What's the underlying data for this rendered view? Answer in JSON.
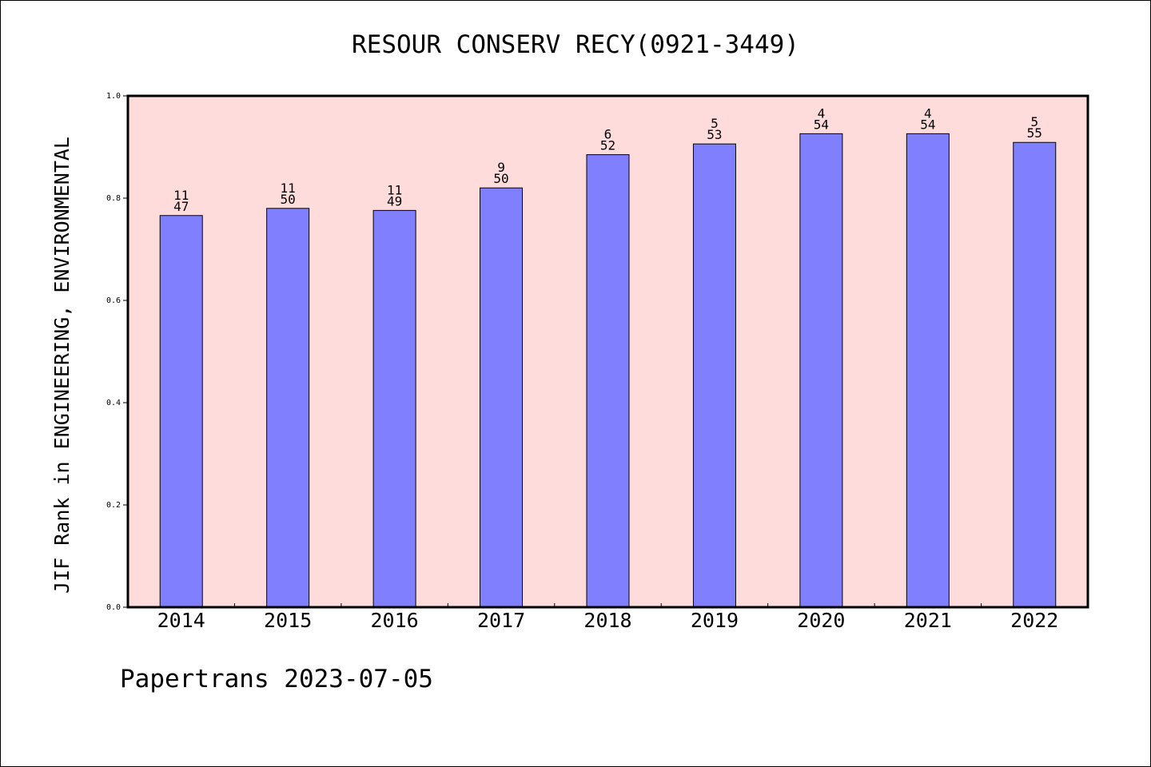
{
  "chart_data": {
    "type": "bar",
    "title": "RESOUR CONSERV RECY(0921-3449)",
    "xlabel": "",
    "ylabel": "JIF Rank in ENGINEERING, ENVIRONMENTAL",
    "categories": [
      "2014",
      "2015",
      "2016",
      "2017",
      "2018",
      "2019",
      "2020",
      "2021",
      "2022"
    ],
    "series": [
      {
        "values": [
          0.766,
          0.78,
          0.776,
          0.82,
          0.885,
          0.906,
          0.926,
          0.926,
          0.909
        ],
        "rank_labels": [
          "11",
          "11",
          "11",
          "9",
          "6",
          "5",
          "4",
          "4",
          "5"
        ],
        "total_labels": [
          "47",
          "50",
          "49",
          "50",
          "52",
          "53",
          "54",
          "54",
          "55"
        ]
      }
    ],
    "ylim": [
      0,
      1.0
    ],
    "yticks": [
      "0.0",
      "0.2",
      "0.4",
      "0.6",
      "0.8",
      "1.0"
    ],
    "grid": false,
    "colors": {
      "bar": "#8080ff",
      "plot_background": "#ffdcdc",
      "axis": "#000000"
    }
  },
  "footer": {
    "text": "Papertrans 2023-07-05"
  }
}
